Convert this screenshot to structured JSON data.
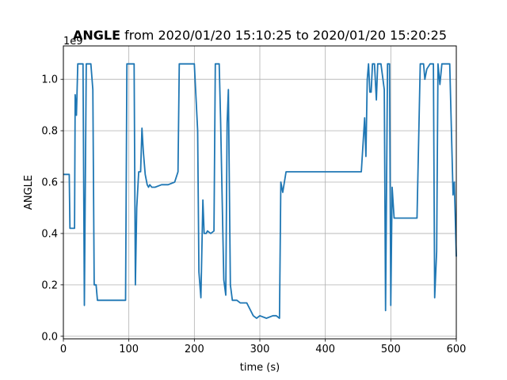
{
  "chart_data": {
    "type": "line",
    "title_bold": "ANGLE",
    "title_rest": " from 2020/01/20 15:10:25 to 2020/01/20 15:20:25",
    "xlabel": "time (s)",
    "ylabel": "ANGLE",
    "y_offset_text": "1e9",
    "xlim": [
      0,
      600
    ],
    "ylim": [
      -0.01,
      1.13
    ],
    "x_ticks": [
      0,
      100,
      200,
      300,
      400,
      500,
      600
    ],
    "x_tick_labels": [
      "0",
      "100",
      "200",
      "300",
      "400",
      "500",
      "600"
    ],
    "y_ticks": [
      0.0,
      0.2,
      0.4,
      0.6,
      0.8,
      1.0
    ],
    "y_tick_labels": [
      "0.0",
      "0.2",
      "0.4",
      "0.6",
      "0.8",
      "1.0"
    ],
    "grid": true,
    "line_color": "#1f77b4",
    "series": [
      {
        "x": [
          0,
          5,
          9,
          10,
          15,
          17,
          18,
          20,
          22,
          25,
          30,
          32,
          35,
          38,
          42,
          45,
          47,
          50,
          52,
          55,
          60,
          70,
          80,
          90,
          95,
          97,
          100,
          105,
          108,
          110,
          112,
          115,
          118,
          120,
          122,
          125,
          128,
          130,
          132,
          135,
          140,
          150,
          160,
          170,
          175,
          177,
          180,
          185,
          190,
          195,
          200,
          205,
          207,
          210,
          213,
          215,
          218,
          220,
          225,
          230,
          232,
          235,
          238,
          240,
          245,
          248,
          250,
          252,
          255,
          258,
          260,
          265,
          270,
          280,
          290,
          295,
          300,
          310,
          320,
          325,
          330,
          332,
          335,
          340,
          350,
          360,
          380,
          400,
          420,
          440,
          455,
          460,
          462,
          464,
          466,
          468,
          470,
          472,
          475,
          478,
          480,
          485,
          490,
          492,
          495,
          497,
          498,
          500,
          502,
          505,
          510,
          520,
          530,
          540,
          545,
          548,
          550,
          552,
          555,
          560,
          562,
          565,
          567,
          570,
          572,
          575,
          578,
          580,
          585,
          590,
          595,
          597,
          600
        ],
        "y": [
          0.63,
          0.63,
          0.63,
          0.42,
          0.42,
          0.42,
          0.94,
          0.86,
          1.06,
          1.06,
          1.06,
          0.12,
          1.06,
          1.06,
          1.06,
          0.96,
          0.2,
          0.2,
          0.14,
          0.14,
          0.14,
          0.14,
          0.14,
          0.14,
          0.14,
          1.06,
          1.06,
          1.06,
          1.06,
          0.2,
          0.5,
          0.64,
          0.64,
          0.81,
          0.72,
          0.63,
          0.59,
          0.58,
          0.59,
          0.58,
          0.58,
          0.59,
          0.59,
          0.6,
          0.64,
          1.06,
          1.06,
          1.06,
          1.06,
          1.06,
          1.06,
          0.8,
          0.25,
          0.15,
          0.53,
          0.4,
          0.4,
          0.41,
          0.4,
          0.41,
          1.06,
          1.06,
          1.06,
          0.85,
          0.22,
          0.16,
          0.83,
          0.96,
          0.2,
          0.14,
          0.14,
          0.14,
          0.13,
          0.13,
          0.08,
          0.07,
          0.08,
          0.07,
          0.08,
          0.08,
          0.07,
          0.6,
          0.56,
          0.64,
          0.64,
          0.64,
          0.64,
          0.64,
          0.64,
          0.64,
          0.64,
          0.85,
          0.7,
          1.0,
          1.06,
          0.95,
          0.95,
          1.06,
          1.06,
          0.92,
          1.06,
          1.06,
          0.96,
          0.1,
          1.06,
          1.06,
          1.06,
          0.12,
          0.58,
          0.46,
          0.46,
          0.46,
          0.46,
          0.46,
          1.06,
          1.06,
          1.06,
          1.0,
          1.04,
          1.06,
          1.06,
          1.06,
          0.15,
          0.33,
          1.06,
          0.98,
          1.06,
          1.06,
          1.06,
          1.06,
          0.55,
          0.6,
          0.31
        ]
      }
    ]
  }
}
